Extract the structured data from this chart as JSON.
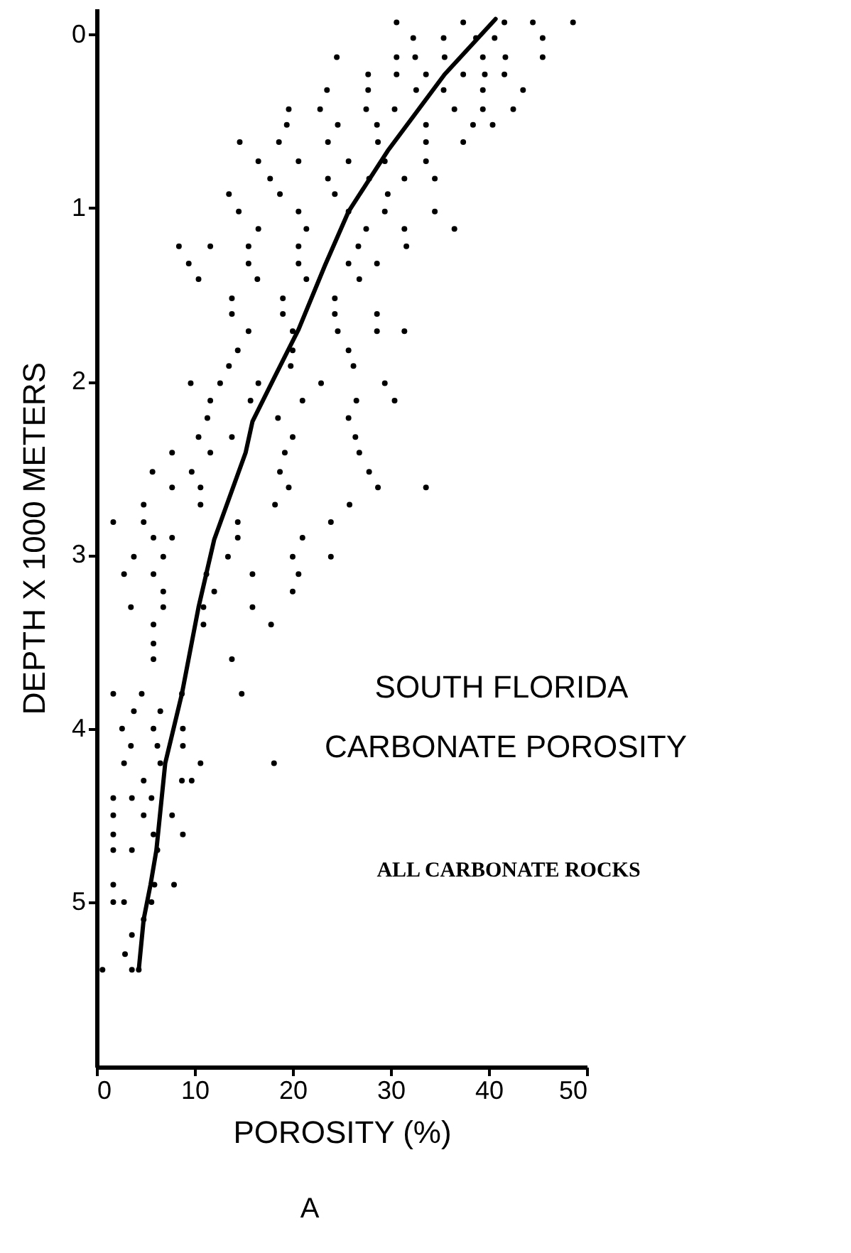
{
  "chart_data": {
    "type": "scatter",
    "xlabel": "POROSITY (%)",
    "ylabel": "DEPTH X 1000 METERS",
    "annotations": [
      "SOUTH FLORIDA",
      "CARBONATE POROSITY",
      "ALL CARBONATE ROCKS",
      "A"
    ],
    "xlim": [
      0,
      50
    ],
    "xticks": [
      0,
      10,
      20,
      30,
      40,
      50
    ],
    "ylim": [
      5.95,
      -0.15
    ],
    "yticks": [
      0,
      1,
      2,
      3,
      4,
      5
    ],
    "grid": false,
    "series": [
      {
        "type": "scatter",
        "marker": "circle",
        "color": "#000000",
        "x": [
          30.6,
          37.4,
          41.6,
          44.5,
          48.6,
          32.3,
          35.4,
          38.7,
          40.6,
          45.5,
          24.5,
          30.6,
          32.5,
          35.5,
          39.4,
          41.7,
          45.5,
          27.7,
          30.6,
          33.6,
          37.4,
          39.6,
          41.6,
          23.5,
          27.7,
          32.6,
          35.4,
          39.4,
          43.5,
          19.6,
          22.8,
          27.5,
          30.4,
          36.5,
          39.4,
          42.5,
          19.4,
          24.6,
          28.6,
          33.6,
          38.4,
          40.4,
          14.6,
          18.6,
          23.6,
          28.7,
          33.6,
          37.4,
          16.5,
          20.6,
          25.7,
          29.4,
          33.6,
          17.7,
          23.6,
          27.8,
          31.4,
          34.5,
          13.5,
          18.7,
          24.3,
          29.7,
          14.5,
          20.6,
          25.7,
          29.4,
          34.5,
          16.5,
          21.4,
          27.5,
          31.4,
          36.5,
          8.4,
          11.6,
          15.5,
          20.6,
          26.7,
          31.6,
          9.4,
          15.5,
          20.6,
          25.7,
          28.6,
          10.4,
          16.4,
          21.4,
          26.8,
          13.8,
          19.0,
          24.3,
          13.8,
          19.0,
          24.3,
          28.6,
          15.5,
          20.0,
          24.6,
          28.6,
          31.4,
          14.4,
          20.0,
          25.7,
          13.5,
          19.8,
          26.2,
          9.6,
          12.6,
          16.5,
          22.9,
          29.4,
          11.6,
          15.7,
          21.0,
          26.5,
          30.4,
          11.3,
          18.5,
          25.7,
          10.4,
          13.8,
          20.0,
          26.4,
          7.7,
          11.6,
          19.2,
          26.8,
          5.7,
          9.7,
          18.7,
          27.8,
          7.7,
          10.6,
          19.6,
          28.7,
          33.6,
          4.8,
          10.6,
          18.2,
          25.8,
          1.7,
          4.8,
          14.4,
          23.9,
          5.8,
          7.7,
          14.4,
          21.0,
          3.8,
          6.8,
          13.4,
          20.0,
          23.9,
          2.8,
          5.8,
          11.2,
          15.9,
          20.6,
          6.8,
          12.0,
          20.0,
          3.5,
          6.8,
          10.9,
          15.9,
          5.8,
          10.9,
          17.8,
          5.8,
          5.8,
          13.8,
          1.7,
          4.6,
          8.7,
          14.8,
          3.8,
          6.5,
          2.6,
          5.8,
          8.8,
          3.5,
          6.2,
          8.8,
          2.8,
          6.5,
          10.6,
          18.1,
          4.8,
          8.7,
          9.7,
          1.7,
          3.6,
          5.6,
          1.7,
          4.8,
          7.7,
          1.7,
          5.8,
          8.8,
          1.7,
          3.6,
          6.2,
          1.7,
          5.9,
          7.9,
          1.7,
          2.8,
          5.6,
          4.8,
          3.6,
          2.9,
          0.6,
          3.6,
          4.3
        ],
        "values": [
          -0.07,
          -0.07,
          -0.07,
          -0.07,
          -0.07,
          0.02,
          0.02,
          0.02,
          0.02,
          0.02,
          0.13,
          0.13,
          0.13,
          0.13,
          0.13,
          0.13,
          0.13,
          0.23,
          0.23,
          0.23,
          0.23,
          0.23,
          0.23,
          0.32,
          0.32,
          0.32,
          0.32,
          0.32,
          0.32,
          0.43,
          0.43,
          0.43,
          0.43,
          0.43,
          0.43,
          0.43,
          0.52,
          0.52,
          0.52,
          0.52,
          0.52,
          0.52,
          0.62,
          0.62,
          0.62,
          0.62,
          0.62,
          0.62,
          0.73,
          0.73,
          0.73,
          0.73,
          0.73,
          0.83,
          0.83,
          0.83,
          0.83,
          0.83,
          0.92,
          0.92,
          0.92,
          0.92,
          1.02,
          1.02,
          1.02,
          1.02,
          1.02,
          1.12,
          1.12,
          1.12,
          1.12,
          1.12,
          1.22,
          1.22,
          1.22,
          1.22,
          1.22,
          1.22,
          1.32,
          1.32,
          1.32,
          1.32,
          1.32,
          1.41,
          1.41,
          1.41,
          1.41,
          1.52,
          1.52,
          1.52,
          1.61,
          1.61,
          1.61,
          1.61,
          1.71,
          1.71,
          1.71,
          1.71,
          1.71,
          1.82,
          1.82,
          1.82,
          1.91,
          1.91,
          1.91,
          2.01,
          2.01,
          2.01,
          2.01,
          2.01,
          2.11,
          2.11,
          2.11,
          2.11,
          2.11,
          2.21,
          2.21,
          2.21,
          2.32,
          2.32,
          2.32,
          2.32,
          2.41,
          2.41,
          2.41,
          2.41,
          2.52,
          2.52,
          2.52,
          2.52,
          2.61,
          2.61,
          2.61,
          2.61,
          2.61,
          2.71,
          2.71,
          2.71,
          2.71,
          2.81,
          2.81,
          2.81,
          2.81,
          2.9,
          2.9,
          2.9,
          2.9,
          3.01,
          3.01,
          3.01,
          3.01,
          3.01,
          3.11,
          3.11,
          3.11,
          3.11,
          3.11,
          3.21,
          3.21,
          3.21,
          3.3,
          3.3,
          3.3,
          3.3,
          3.4,
          3.4,
          3.4,
          3.51,
          3.6,
          3.6,
          3.8,
          3.8,
          3.8,
          3.8,
          3.9,
          3.9,
          4.0,
          4.0,
          4.0,
          4.1,
          4.1,
          4.1,
          4.2,
          4.2,
          4.2,
          4.2,
          4.3,
          4.3,
          4.3,
          4.4,
          4.4,
          4.4,
          4.5,
          4.5,
          4.5,
          4.61,
          4.61,
          4.61,
          4.7,
          4.7,
          4.7,
          4.9,
          4.9,
          4.9,
          5.0,
          5.0,
          5.0,
          5.1,
          5.19,
          5.3,
          5.39,
          5.39,
          5.39
        ]
      },
      {
        "type": "line",
        "marker": "none",
        "color": "#000000",
        "x": [
          40.7,
          35.5,
          29.7,
          25.7,
          23.3,
          20.6,
          18.1,
          15.9,
          15.2,
          12.0,
          10.4,
          8.7,
          7.0,
          6.1,
          5.5,
          4.8,
          4.3
        ],
        "values": [
          -0.09,
          0.23,
          0.67,
          1.02,
          1.33,
          1.7,
          1.98,
          2.23,
          2.41,
          2.91,
          3.3,
          3.8,
          4.2,
          4.7,
          4.9,
          5.1,
          5.39
        ]
      }
    ]
  }
}
